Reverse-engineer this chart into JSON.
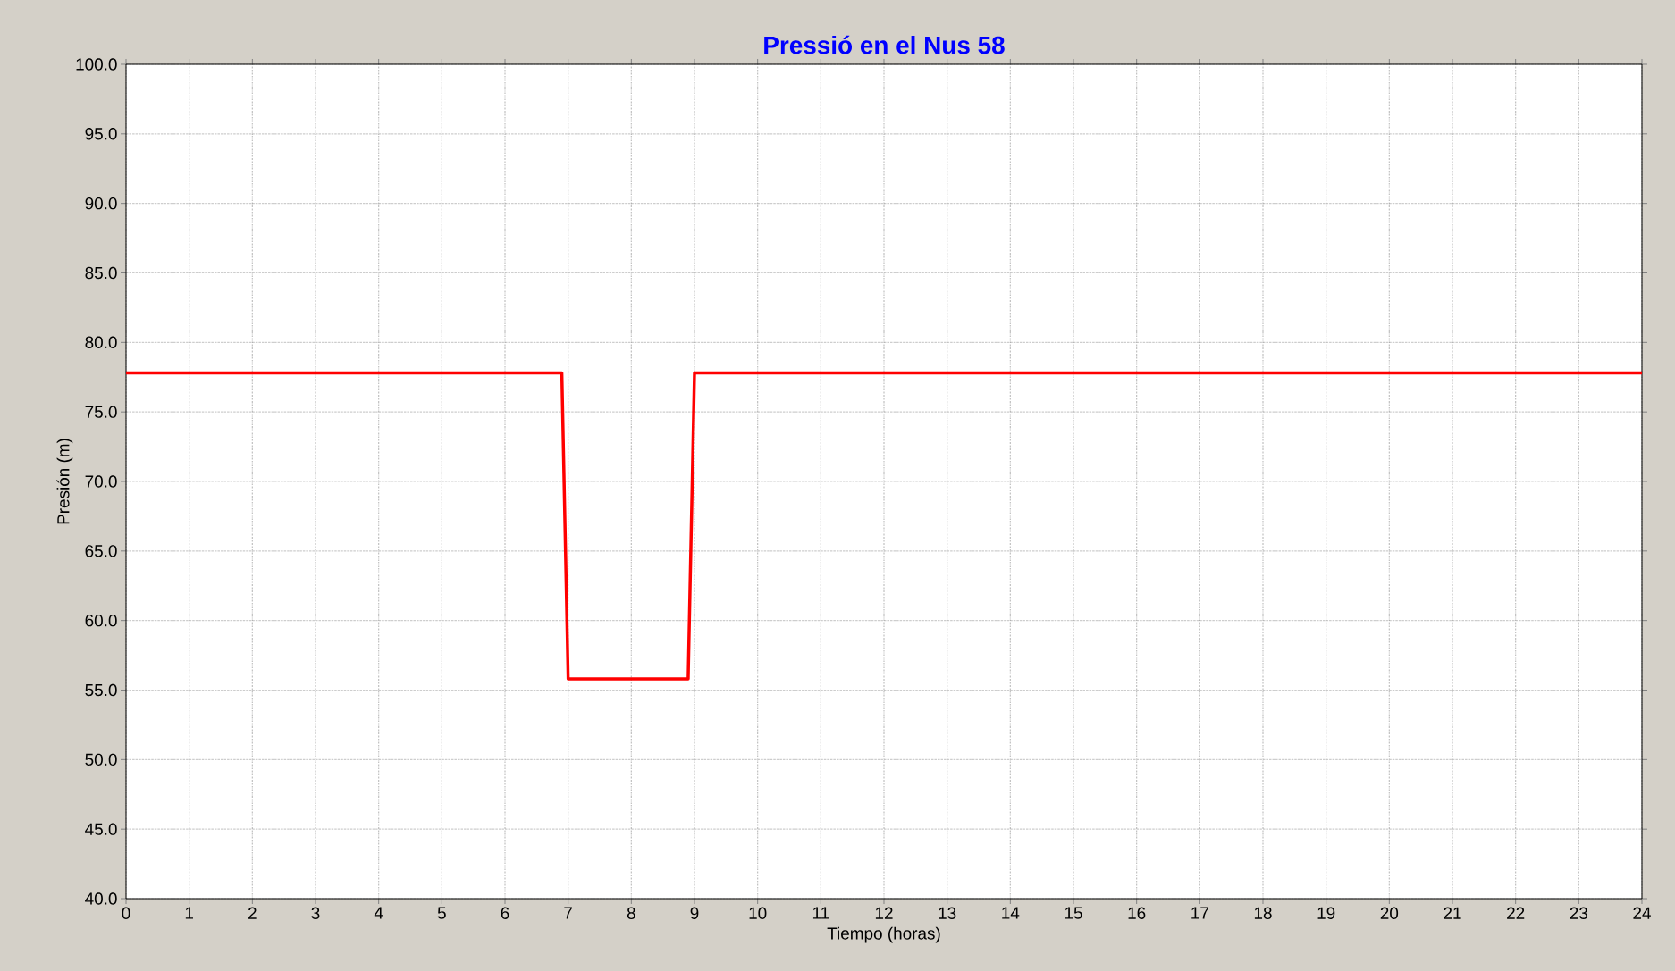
{
  "chart_data": {
    "type": "line",
    "title": "Pressió en el Nus 58",
    "xlabel": "Tiempo (horas)",
    "ylabel": "Presión (m)",
    "x": [
      0,
      6.9,
      7,
      8.9,
      9,
      24
    ],
    "series": [
      {
        "color": "#ff0000",
        "values": [
          77.8,
          77.8,
          55.8,
          55.8,
          77.8,
          77.8
        ]
      }
    ],
    "xlim": [
      0,
      24
    ],
    "ylim": [
      40,
      100
    ],
    "xticks": [
      0,
      1,
      2,
      3,
      4,
      5,
      6,
      7,
      8,
      9,
      10,
      11,
      12,
      13,
      14,
      15,
      16,
      17,
      18,
      19,
      20,
      21,
      22,
      23,
      24
    ],
    "yticks": [
      {
        "value": 40,
        "label": "40.0"
      },
      {
        "value": 45,
        "label": "45.0"
      },
      {
        "value": 50,
        "label": "50.0"
      },
      {
        "value": 55,
        "label": "55.0"
      },
      {
        "value": 60,
        "label": "60.0"
      },
      {
        "value": 65,
        "label": "65.0"
      },
      {
        "value": 70,
        "label": "70.0"
      },
      {
        "value": 75,
        "label": "75.0"
      },
      {
        "value": 80,
        "label": "80.0"
      },
      {
        "value": 85,
        "label": "85.0"
      },
      {
        "value": 90,
        "label": "90.0"
      },
      {
        "value": 95,
        "label": "95.0"
      },
      {
        "value": 100,
        "label": "100.0"
      }
    ],
    "grid": true
  }
}
